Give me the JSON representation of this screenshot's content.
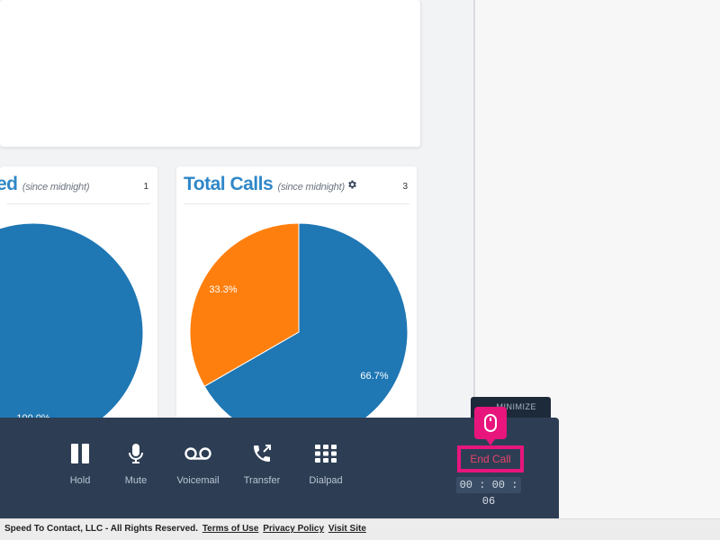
{
  "widgets": {
    "left": {
      "title": "ed",
      "subtitle": "(since midnight)",
      "count": "1"
    },
    "right": {
      "title": "Total Calls",
      "subtitle": "(since midnight)",
      "count": "3"
    }
  },
  "chart_data": [
    {
      "type": "pie",
      "title": "ed",
      "values": [
        100
      ],
      "labels": [
        "100.0%"
      ],
      "colors": [
        "#1f77b4"
      ]
    },
    {
      "type": "pie",
      "title": "Total Calls",
      "values": [
        66.7,
        33.3
      ],
      "labels": [
        "66.7%",
        "33.3%"
      ],
      "colors": [
        "#1f77b4",
        "#ff7f0e"
      ]
    }
  ],
  "minimize": {
    "label": "— MINIMIZE"
  },
  "call_controls": [
    {
      "label": "Hold",
      "icon": "pause-icon"
    },
    {
      "label": "Mute",
      "icon": "microphone-icon"
    },
    {
      "label": "Voicemail",
      "icon": "voicemail-icon"
    },
    {
      "label": "Transfer",
      "icon": "phone-transfer-icon"
    },
    {
      "label": "Dialpad",
      "icon": "dialpad-icon"
    }
  ],
  "end_call": {
    "label": "End Call"
  },
  "timer": "00 : 00 : 06",
  "footer": {
    "copyright": "Speed To Contact, LLC - All Rights Reserved.",
    "terms": "Terms of Use",
    "privacy": "Privacy Policy",
    "visit": "Visit Site"
  }
}
